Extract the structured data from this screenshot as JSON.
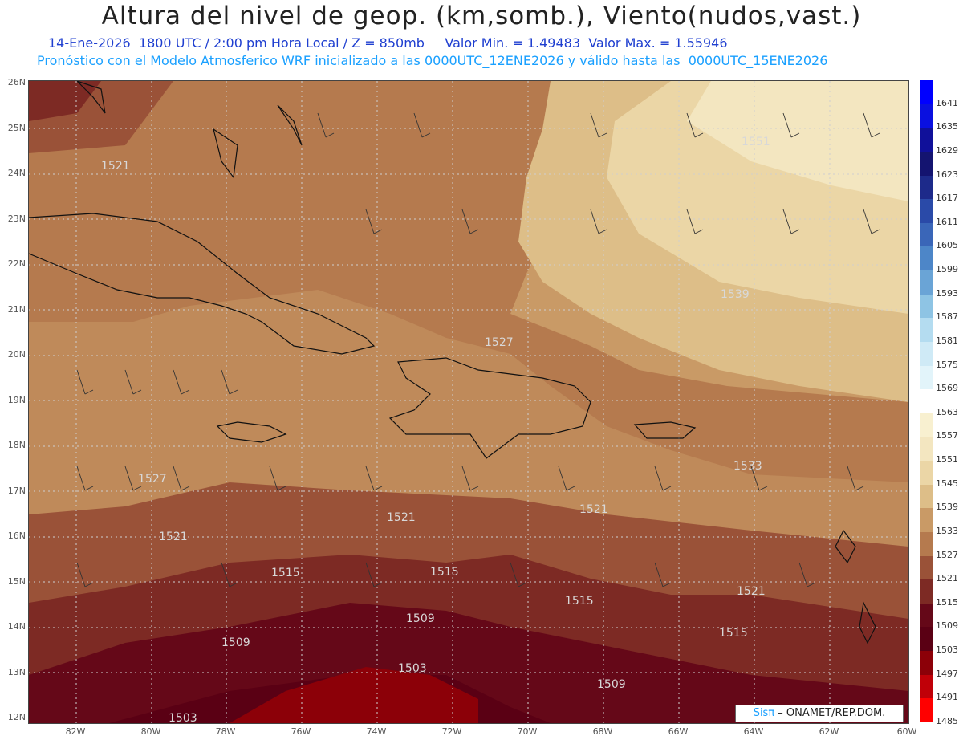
{
  "title": "Altura del nivel de geop. (km,somb.), Viento(nudos,vast.)",
  "subtitle1": "14-Ene-2026  1800 UTC / 2:00 pm Hora Local / Z = 850mb     Valor Min. = 1.49483  Valor Max. = 1.55946",
  "subtitle2": "Pronóstico con el Modelo Atmosferico WRF inicializado a las 0000UTC_12ENE2026 y válido hasta las  0000UTC_15ENE2026",
  "lat_labels": [
    "26N",
    "25N",
    "24N",
    "23N",
    "22N",
    "21N",
    "20N",
    "19N",
    "18N",
    "17N",
    "16N",
    "15N",
    "14N",
    "13N",
    "12N"
  ],
  "lon_labels": [
    "82W",
    "80W",
    "78W",
    "76W",
    "74W",
    "72W",
    "70W",
    "68W",
    "66W",
    "64W",
    "62W",
    "60W"
  ],
  "colorbar": {
    "labels": [
      "1641",
      "1635",
      "1629",
      "1623",
      "1617",
      "1611",
      "1605",
      "1599",
      "1593",
      "1587",
      "1581",
      "1575",
      "1569",
      "1563",
      "1557",
      "1551",
      "1545",
      "1539",
      "1533",
      "1527",
      "1521",
      "1515",
      "1509",
      "1503",
      "1497",
      "1491",
      "1485"
    ],
    "colors": [
      "#0000ff",
      "#0a10e0",
      "#10109a",
      "#141470",
      "#1d2a8a",
      "#2a4aa8",
      "#3a66b8",
      "#4d86c8",
      "#6aa4d6",
      "#8ec4e4",
      "#b4dcf0",
      "#cfeaf6",
      "#e2f4fa",
      "#ffffff",
      "#f8f0d0",
      "#f3e6c0",
      "#ebd6a6",
      "#ddbe88",
      "#c99a66",
      "#b57a4e",
      "#9a5238",
      "#7d2a24",
      "#650818",
      "#5a0014",
      "#8c0008",
      "#c00008",
      "#ff0000"
    ]
  },
  "contour_labels": [
    "1551",
    "1539",
    "1527",
    "1521",
    "1515",
    "1509",
    "1503",
    "1533"
  ],
  "credit": {
    "brand": "Sisπ",
    "text": " – ONAMET/REP.DOM."
  },
  "colors": {
    "title": "#222222",
    "subtitle1": "#1f3fd0",
    "subtitle2": "#1aa0ff"
  }
}
